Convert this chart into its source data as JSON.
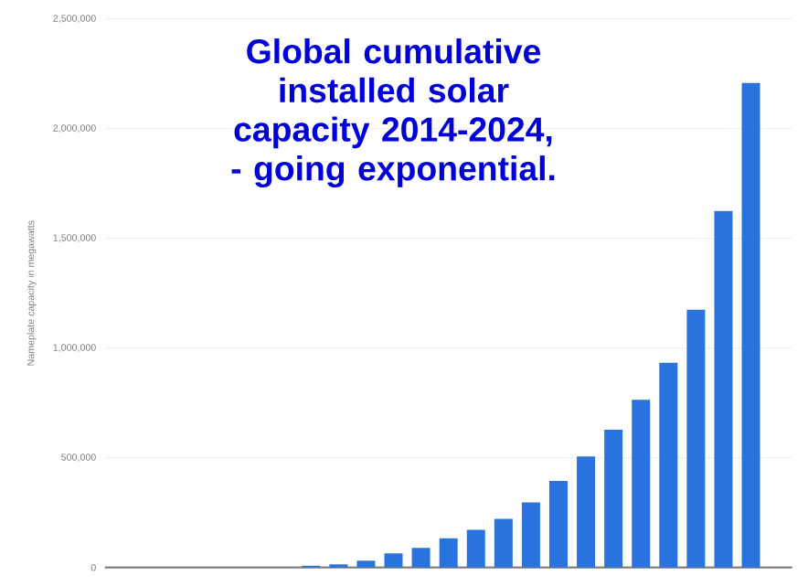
{
  "chart_data": {
    "type": "bar",
    "title": "Global cumulative installed solar capacity 2014-2024, - going exponential.",
    "ylabel": "Nameplate capacity in megawatts",
    "categories": [
      null,
      null,
      null,
      null,
      null,
      null,
      null,
      null,
      null,
      null,
      null,
      null,
      null,
      null,
      null,
      null,
      null,
      null,
      null,
      null,
      null,
      null,
      null,
      null,
      null
    ],
    "values": [
      0,
      0,
      0,
      0,
      0,
      0,
      0,
      8000,
      14000,
      31000,
      64000,
      89000,
      133000,
      172000,
      222000,
      297000,
      394000,
      506000,
      628000,
      764000,
      933000,
      1175000,
      1625000,
      2208000,
      0
    ],
    "color": "#2873dd",
    "ylim": [
      0,
      2500000
    ],
    "yticks": [
      {
        "value": 0,
        "label": "0"
      },
      {
        "value": 500000,
        "label": "500,000"
      },
      {
        "value": 1000000,
        "label": "1,000,000"
      },
      {
        "value": 1500000,
        "label": "1,500,000"
      },
      {
        "value": 2000000,
        "label": "2,000,000"
      },
      {
        "value": 2500000,
        "label": "2,500,000"
      }
    ],
    "grid": "y"
  }
}
